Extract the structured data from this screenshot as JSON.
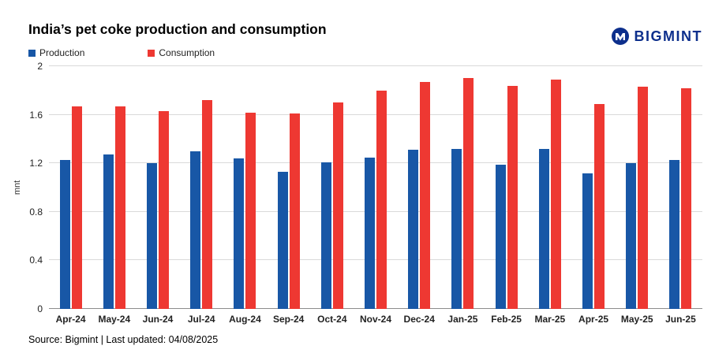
{
  "header": {
    "title": "India’s pet coke production and consumption",
    "brand": "BIGMINT"
  },
  "footer": {
    "source": "Source: Bigmint | Last updated: 04/08/2025"
  },
  "colors": {
    "production_blue": "#1857a6",
    "consumption_red": "#ee3832",
    "brand_navy": "#0d2f8c",
    "grid_gray": "#d9d9d9",
    "baseline_gray": "#8c8c8c"
  },
  "chart_data": {
    "type": "bar",
    "title": "India’s pet coke production and consumption",
    "xlabel": "",
    "ylabel": "mnt",
    "ylim": [
      0,
      2
    ],
    "yticks": [
      0,
      0.4,
      0.8,
      1.2,
      1.6,
      2
    ],
    "grid": true,
    "legend_position": "top-left",
    "categories": [
      "Apr-24",
      "May-24",
      "Jun-24",
      "Jul-24",
      "Aug-24",
      "Sep-24",
      "Oct-24",
      "Nov-24",
      "Dec-24",
      "Jan-25",
      "Feb-25",
      "Mar-25",
      "Apr-25",
      "May-25",
      "Jun-25"
    ],
    "series": [
      {
        "name": "Production",
        "color": "#1857a6",
        "values": [
          1.23,
          1.27,
          1.2,
          1.3,
          1.24,
          1.13,
          1.21,
          1.25,
          1.31,
          1.32,
          1.19,
          1.32,
          1.12,
          1.2,
          1.23
        ]
      },
      {
        "name": "Consumption",
        "color": "#ee3832",
        "values": [
          1.67,
          1.67,
          1.63,
          1.72,
          1.62,
          1.61,
          1.7,
          1.8,
          1.87,
          1.9,
          1.84,
          1.89,
          1.69,
          1.83,
          1.82
        ]
      }
    ]
  }
}
